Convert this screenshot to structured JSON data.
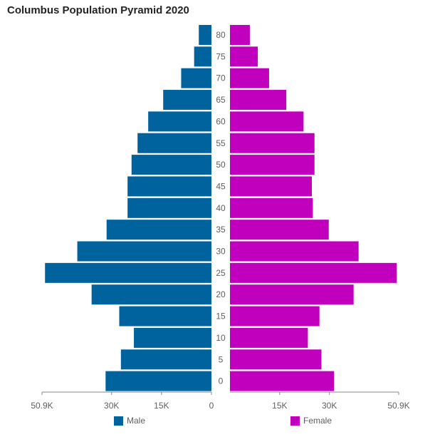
{
  "chart_data": {
    "type": "bar",
    "title": "Columbus Population Pyramid 2020",
    "categories": [
      "80",
      "75",
      "70",
      "65",
      "60",
      "55",
      "50",
      "45",
      "40",
      "35",
      "30",
      "25",
      "20",
      "15",
      "10",
      "5",
      "0"
    ],
    "series": [
      {
        "name": "Male",
        "color": "#00639e",
        "values": [
          3800,
          5200,
          9100,
          14500,
          19000,
          22200,
          24000,
          25200,
          25200,
          31500,
          40300,
          50000,
          36000,
          27700,
          23300,
          27200,
          31800
        ]
      },
      {
        "name": "Female",
        "color": "#c000bc",
        "values": [
          6000,
          8400,
          11800,
          17000,
          22200,
          25500,
          25500,
          24700,
          25000,
          29800,
          38800,
          50300,
          37300,
          27000,
          23500,
          27600,
          31400
        ]
      }
    ],
    "male_axis": {
      "ticks": [
        50900,
        30000,
        15000,
        0
      ],
      "tick_labels": [
        "50.9K",
        "30K",
        "15K",
        "0"
      ],
      "range": [
        0,
        50900
      ]
    },
    "female_axis": {
      "ticks": [
        15000,
        30000,
        50900
      ],
      "tick_labels": [
        "15K",
        "30K",
        "50.9K"
      ],
      "range": [
        0,
        50900
      ]
    },
    "legend": [
      "Male",
      "Female"
    ],
    "legend_position": "bottom"
  }
}
